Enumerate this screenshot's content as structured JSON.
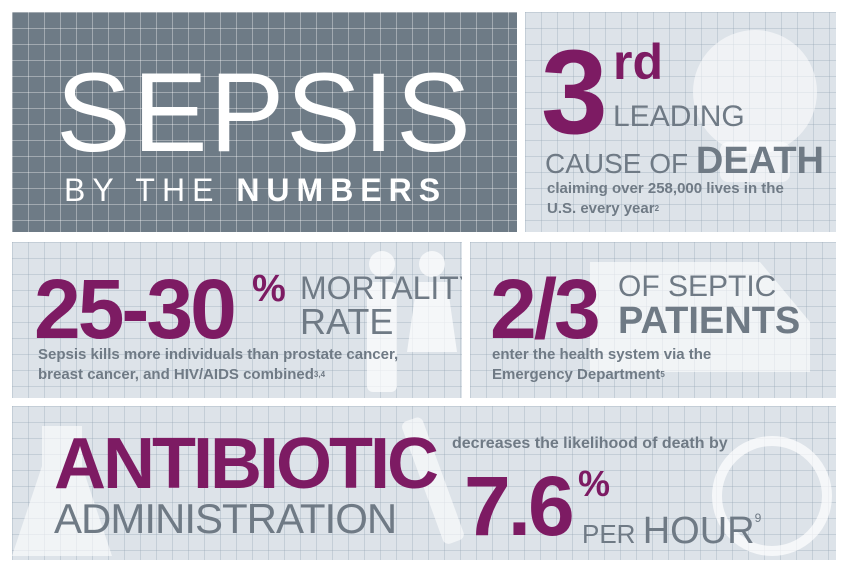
{
  "header": {
    "title": "SEPSIS",
    "subtitle_prefix": "BY THE",
    "subtitle_bold": "NUMBERS"
  },
  "stats": [
    {
      "number": "3",
      "suffix": "rd",
      "label_1": "LEADING",
      "label_2a": "CAUSE OF",
      "label_2b": "DEATH",
      "note": "claiming over 258,000 lives in the U.S. every year",
      "ref": "2"
    },
    {
      "number": "25-30",
      "suffix": "%",
      "label_1": "MORTALITY",
      "label_2": "RATE",
      "note": "Sepsis kills more individuals than prostate cancer, breast cancer, and HIV/AIDS combined",
      "ref": "3,4"
    },
    {
      "number": "2/3",
      "label_1": "OF SEPTIC",
      "label_2": "PATIENTS",
      "note": "enter the health system via the Emergency Department",
      "ref": "5"
    },
    {
      "title_1": "ANTIBIOTIC",
      "title_2": "ADMINISTRATION",
      "lead": "decreases the likelihood of death by",
      "number": "7.6",
      "suffix": "%",
      "unit_a": "PER",
      "unit_b": "HOUR",
      "ref": "9"
    }
  ]
}
